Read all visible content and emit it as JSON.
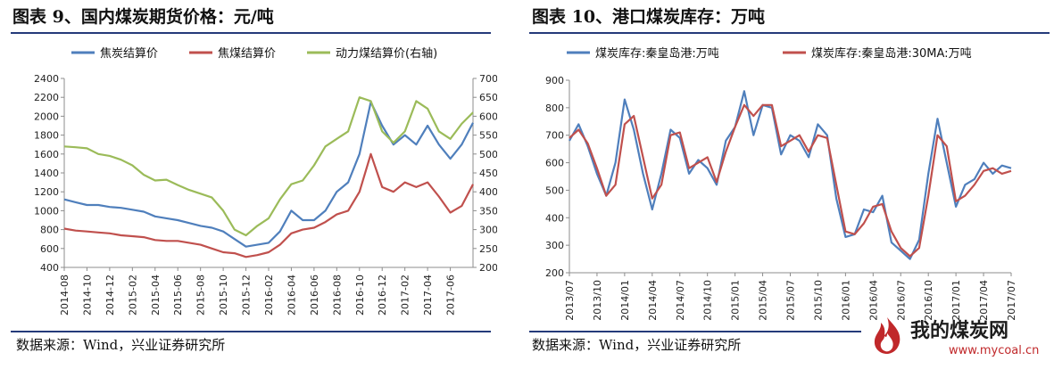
{
  "left": {
    "title": "图表 9、国内煤炭期货价格：元/吨",
    "source": "数据来源：Wind，兴业证券研究所"
  },
  "right": {
    "title": "图表 10、港口煤炭库存：万吨",
    "source": "数据来源：Wind，兴业证券研究所"
  },
  "logo": {
    "name": "我的煤炭网",
    "url": "www.mycoal.cn"
  },
  "colors": {
    "blue": "#4f7fbc",
    "red": "#c0504d",
    "green": "#9bbb59",
    "rule": "#243a7a"
  },
  "chart_data": [
    {
      "type": "line",
      "title": "",
      "x_tick_labels": [
        "2014-08",
        "2014-10",
        "2014-12",
        "2015-02",
        "2015-04",
        "2015-06",
        "2015-08",
        "2015-10",
        "2015-12",
        "2016-02",
        "2016-04",
        "2016-06",
        "2016-08",
        "2016-10",
        "2016-12",
        "2017-02",
        "2017-04",
        "2017-06"
      ],
      "x_range": [
        "2014-08",
        "2017-08"
      ],
      "y_left_ticks": [
        "400",
        "600",
        "800",
        "1000",
        "1200",
        "1400",
        "1600",
        "1800",
        "2000",
        "2200",
        "2400"
      ],
      "y_left_range": [
        400,
        2400
      ],
      "y_right_ticks": [
        "200",
        "250",
        "300",
        "350",
        "400",
        "450",
        "500",
        "550",
        "600",
        "650",
        "700"
      ],
      "y_right_range": [
        200,
        700
      ],
      "legend_position": "top",
      "grid": false,
      "series": [
        {
          "name": "焦炭结算价",
          "axis": "left",
          "color": "#4f7fbc",
          "points": [
            [
              "2014-08",
              1120
            ],
            [
              "2014-09",
              1090
            ],
            [
              "2014-10",
              1060
            ],
            [
              "2014-11",
              1060
            ],
            [
              "2014-12",
              1040
            ],
            [
              "2015-01",
              1030
            ],
            [
              "2015-02",
              1010
            ],
            [
              "2015-03",
              990
            ],
            [
              "2015-04",
              940
            ],
            [
              "2015-05",
              920
            ],
            [
              "2015-06",
              900
            ],
            [
              "2015-07",
              870
            ],
            [
              "2015-08",
              840
            ],
            [
              "2015-09",
              820
            ],
            [
              "2015-10",
              780
            ],
            [
              "2015-11",
              700
            ],
            [
              "2015-12",
              620
            ],
            [
              "2016-01",
              640
            ],
            [
              "2016-02",
              660
            ],
            [
              "2016-03",
              780
            ],
            [
              "2016-04",
              1000
            ],
            [
              "2016-05",
              900
            ],
            [
              "2016-06",
              900
            ],
            [
              "2016-07",
              1000
            ],
            [
              "2016-08",
              1200
            ],
            [
              "2016-09",
              1300
            ],
            [
              "2016-10",
              1600
            ],
            [
              "2016-11",
              2150
            ],
            [
              "2016-12",
              1900
            ],
            [
              "2017-01",
              1700
            ],
            [
              "2017-02",
              1800
            ],
            [
              "2017-03",
              1700
            ],
            [
              "2017-04",
              1900
            ],
            [
              "2017-05",
              1700
            ],
            [
              "2017-06",
              1550
            ],
            [
              "2017-07",
              1700
            ],
            [
              "2017-08",
              1930
            ]
          ]
        },
        {
          "name": "焦煤结算价",
          "axis": "left",
          "color": "#c0504d",
          "points": [
            [
              "2014-08",
              810
            ],
            [
              "2014-09",
              790
            ],
            [
              "2014-10",
              780
            ],
            [
              "2014-11",
              770
            ],
            [
              "2014-12",
              760
            ],
            [
              "2015-01",
              740
            ],
            [
              "2015-02",
              730
            ],
            [
              "2015-03",
              720
            ],
            [
              "2015-04",
              690
            ],
            [
              "2015-05",
              680
            ],
            [
              "2015-06",
              680
            ],
            [
              "2015-07",
              660
            ],
            [
              "2015-08",
              640
            ],
            [
              "2015-09",
              600
            ],
            [
              "2015-10",
              560
            ],
            [
              "2015-11",
              550
            ],
            [
              "2015-12",
              510
            ],
            [
              "2016-01",
              530
            ],
            [
              "2016-02",
              560
            ],
            [
              "2016-03",
              640
            ],
            [
              "2016-04",
              760
            ],
            [
              "2016-05",
              800
            ],
            [
              "2016-06",
              820
            ],
            [
              "2016-07",
              880
            ],
            [
              "2016-08",
              960
            ],
            [
              "2016-09",
              1000
            ],
            [
              "2016-10",
              1200
            ],
            [
              "2016-11",
              1600
            ],
            [
              "2016-12",
              1250
            ],
            [
              "2017-01",
              1200
            ],
            [
              "2017-02",
              1300
            ],
            [
              "2017-03",
              1250
            ],
            [
              "2017-04",
              1300
            ],
            [
              "2017-05",
              1150
            ],
            [
              "2017-06",
              980
            ],
            [
              "2017-07",
              1050
            ],
            [
              "2017-08",
              1280
            ]
          ]
        },
        {
          "name": "动力煤结算价(右轴)",
          "axis": "right",
          "color": "#9bbb59",
          "points": [
            [
              "2014-08",
              520
            ],
            [
              "2014-09",
              518
            ],
            [
              "2014-10",
              515
            ],
            [
              "2014-11",
              500
            ],
            [
              "2014-12",
              495
            ],
            [
              "2015-01",
              485
            ],
            [
              "2015-02",
              470
            ],
            [
              "2015-03",
              445
            ],
            [
              "2015-04",
              430
            ],
            [
              "2015-05",
              432
            ],
            [
              "2015-06",
              418
            ],
            [
              "2015-07",
              405
            ],
            [
              "2015-08",
              395
            ],
            [
              "2015-09",
              385
            ],
            [
              "2015-10",
              350
            ],
            [
              "2015-11",
              300
            ],
            [
              "2015-12",
              285
            ],
            [
              "2016-01",
              310
            ],
            [
              "2016-02",
              330
            ],
            [
              "2016-03",
              380
            ],
            [
              "2016-04",
              420
            ],
            [
              "2016-05",
              430
            ],
            [
              "2016-06",
              470
            ],
            [
              "2016-07",
              520
            ],
            [
              "2016-08",
              540
            ],
            [
              "2016-09",
              560
            ],
            [
              "2016-10",
              650
            ],
            [
              "2016-11",
              640
            ],
            [
              "2016-12",
              560
            ],
            [
              "2017-01",
              530
            ],
            [
              "2017-02",
              560
            ],
            [
              "2017-03",
              640
            ],
            [
              "2017-04",
              620
            ],
            [
              "2017-05",
              560
            ],
            [
              "2017-06",
              540
            ],
            [
              "2017-07",
              580
            ],
            [
              "2017-08",
              610
            ]
          ]
        }
      ]
    },
    {
      "type": "line",
      "title": "",
      "x_tick_labels": [
        "2013/07",
        "2013/10",
        "2014/01",
        "2014/04",
        "2014/07",
        "2014/10",
        "2015/01",
        "2015/04",
        "2015/07",
        "2015/10",
        "2016/01",
        "2016/04",
        "2016/07",
        "2016/10",
        "2017/01",
        "2017/04",
        "2017/07"
      ],
      "x_range": [
        "2013/07",
        "2017/07"
      ],
      "y_ticks": [
        "200",
        "300",
        "400",
        "500",
        "600",
        "700",
        "800",
        "900"
      ],
      "y_range": [
        200,
        900
      ],
      "legend_position": "top",
      "grid": false,
      "series": [
        {
          "name": "煤炭库存:秦皇岛港:万吨",
          "color": "#4f7fbc",
          "points": [
            [
              "2013/07",
              680
            ],
            [
              "2013/08",
              740
            ],
            [
              "2013/09",
              660
            ],
            [
              "2013/10",
              560
            ],
            [
              "2013/11",
              480
            ],
            [
              "2013/12",
              600
            ],
            [
              "2014/01",
              830
            ],
            [
              "2014/02",
              720
            ],
            [
              "2014/03",
              560
            ],
            [
              "2014/04",
              430
            ],
            [
              "2014/05",
              560
            ],
            [
              "2014/06",
              720
            ],
            [
              "2014/07",
              690
            ],
            [
              "2014/08",
              560
            ],
            [
              "2014/09",
              610
            ],
            [
              "2014/10",
              580
            ],
            [
              "2014/11",
              520
            ],
            [
              "2014/12",
              680
            ],
            [
              "2015/01",
              730
            ],
            [
              "2015/02",
              860
            ],
            [
              "2015/03",
              700
            ],
            [
              "2015/04",
              810
            ],
            [
              "2015/05",
              800
            ],
            [
              "2015/06",
              630
            ],
            [
              "2015/07",
              700
            ],
            [
              "2015/08",
              680
            ],
            [
              "2015/09",
              620
            ],
            [
              "2015/10",
              740
            ],
            [
              "2015/11",
              700
            ],
            [
              "2015/12",
              470
            ],
            [
              "2016/01",
              330
            ],
            [
              "2016/02",
              340
            ],
            [
              "2016/03",
              430
            ],
            [
              "2016/04",
              420
            ],
            [
              "2016/05",
              480
            ],
            [
              "2016/06",
              310
            ],
            [
              "2016/07",
              280
            ],
            [
              "2016/08",
              250
            ],
            [
              "2016/09",
              320
            ],
            [
              "2016/10",
              560
            ],
            [
              "2016/11",
              760
            ],
            [
              "2016/12",
              600
            ],
            [
              "2017/01",
              440
            ],
            [
              "2017/02",
              520
            ],
            [
              "2017/03",
              540
            ],
            [
              "2017/04",
              600
            ],
            [
              "2017/05",
              560
            ],
            [
              "2017/06",
              590
            ],
            [
              "2017/07",
              580
            ]
          ]
        },
        {
          "name": "煤炭库存:秦皇岛港:30MA:万吨",
          "color": "#c0504d",
          "points": [
            [
              "2013/07",
              690
            ],
            [
              "2013/08",
              720
            ],
            [
              "2013/09",
              670
            ],
            [
              "2013/10",
              580
            ],
            [
              "2013/11",
              480
            ],
            [
              "2013/12",
              520
            ],
            [
              "2014/01",
              740
            ],
            [
              "2014/02",
              770
            ],
            [
              "2014/03",
              620
            ],
            [
              "2014/04",
              470
            ],
            [
              "2014/05",
              520
            ],
            [
              "2014/06",
              700
            ],
            [
              "2014/07",
              710
            ],
            [
              "2014/08",
              580
            ],
            [
              "2014/09",
              600
            ],
            [
              "2014/10",
              620
            ],
            [
              "2014/11",
              530
            ],
            [
              "2014/12",
              640
            ],
            [
              "2015/01",
              730
            ],
            [
              "2015/02",
              810
            ],
            [
              "2015/03",
              770
            ],
            [
              "2015/04",
              810
            ],
            [
              "2015/05",
              810
            ],
            [
              "2015/06",
              660
            ],
            [
              "2015/07",
              680
            ],
            [
              "2015/08",
              700
            ],
            [
              "2015/09",
              640
            ],
            [
              "2015/10",
              700
            ],
            [
              "2015/11",
              690
            ],
            [
              "2015/12",
              520
            ],
            [
              "2016/01",
              350
            ],
            [
              "2016/02",
              340
            ],
            [
              "2016/03",
              380
            ],
            [
              "2016/04",
              440
            ],
            [
              "2016/05",
              450
            ],
            [
              "2016/06",
              350
            ],
            [
              "2016/07",
              290
            ],
            [
              "2016/08",
              260
            ],
            [
              "2016/09",
              290
            ],
            [
              "2016/10",
              480
            ],
            [
              "2016/11",
              700
            ],
            [
              "2016/12",
              660
            ],
            [
              "2017/01",
              460
            ],
            [
              "2017/02",
              480
            ],
            [
              "2017/03",
              520
            ],
            [
              "2017/04",
              570
            ],
            [
              "2017/05",
              580
            ],
            [
              "2017/06",
              560
            ],
            [
              "2017/07",
              570
            ]
          ]
        }
      ]
    }
  ]
}
